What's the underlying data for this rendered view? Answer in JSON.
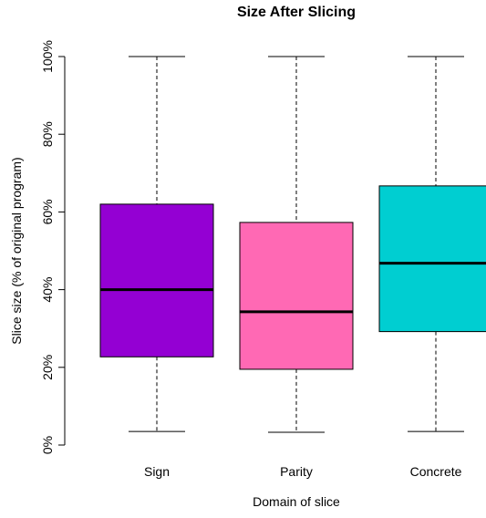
{
  "chart_data": {
    "type": "box",
    "title": "Size After Slicing",
    "xlabel": "Domain of slice",
    "ylabel": "Slice size (% of original program)",
    "ylim": [
      0,
      100
    ],
    "yticks": [
      0,
      20,
      40,
      60,
      80,
      100
    ],
    "ytick_labels": [
      "0%",
      "20%",
      "40%",
      "60%",
      "80%",
      "100%"
    ],
    "categories": [
      "Sign",
      "Parity",
      "Concrete"
    ],
    "series": [
      {
        "color": "#9400D3",
        "min": 3.5,
        "q1": 22.7,
        "median": 40.0,
        "q3": 62.0,
        "max": 100
      },
      {
        "color": "#FF69B4",
        "min": 3.3,
        "q1": 19.5,
        "median": 34.3,
        "q3": 57.3,
        "max": 100
      },
      {
        "color": "#00CED1",
        "min": 3.5,
        "q1": 29.2,
        "median": 46.8,
        "q3": 66.7,
        "max": 100
      }
    ],
    "grid": false,
    "legend": "none"
  }
}
